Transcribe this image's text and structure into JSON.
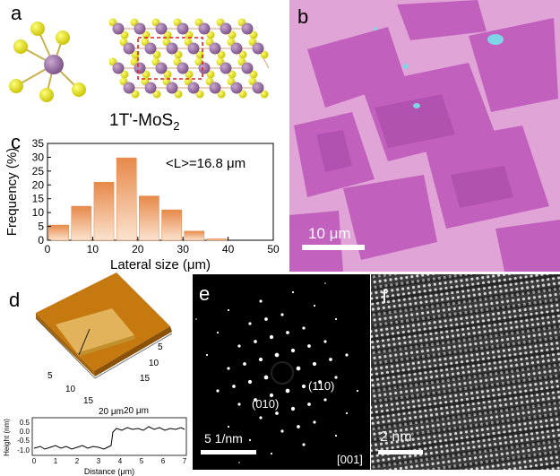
{
  "panels": {
    "a": {
      "letter": "a",
      "formula_main": "1T'-MoS",
      "formula_sub": "2"
    },
    "b": {
      "letter": "b",
      "scalebar_label": "10 μm",
      "colors": {
        "substrate": "#e0a4d6",
        "flake": "#c05bbd",
        "spot": "#7fd4e6"
      }
    },
    "c": {
      "letter": "c",
      "annotation": "<L>=16.8 μm",
      "bar_color_top": "#e7894a",
      "bar_color_bottom": "#fbe3cf"
    },
    "d": {
      "letter": "d",
      "afm_x_ticks": [
        "5",
        "10",
        "15",
        "20 μm"
      ],
      "afm_y_ticks": [
        "5",
        "10",
        "15",
        "20 μm"
      ],
      "profile_ylabel": "Height (nm)",
      "profile_xlabel": "Distance (μm)",
      "profile_y_ticks": [
        "0.5",
        "0.0",
        "-0.5",
        "-1.0"
      ],
      "profile_x_ticks": [
        "0",
        "1",
        "2",
        "3",
        "4",
        "5",
        "6",
        "7"
      ]
    },
    "e": {
      "letter": "e",
      "label_110": "(110)",
      "label_010": "(010)",
      "zone_axis": "[001]",
      "scalebar_label": "5 1/nm"
    },
    "f": {
      "letter": "f",
      "scalebar_label": "2 nm"
    }
  },
  "chart_data": {
    "type": "bar",
    "xlabel": "Lateral size (μm)",
    "ylabel": "Frequency (%)",
    "x": [
      2.5,
      7.5,
      12.5,
      17.5,
      22.5,
      27.5,
      32.5,
      37.5,
      42.5
    ],
    "values": [
      5.5,
      12.3,
      21,
      29.8,
      16,
      11,
      3.3,
      0.5,
      0
    ],
    "xlim": [
      0,
      50
    ],
    "ylim": [
      0,
      35
    ],
    "x_ticks": [
      "0",
      "10",
      "20",
      "30",
      "40",
      "50"
    ],
    "y_ticks": [
      "0",
      "5",
      "10",
      "15",
      "20",
      "25",
      "30",
      "35"
    ]
  }
}
